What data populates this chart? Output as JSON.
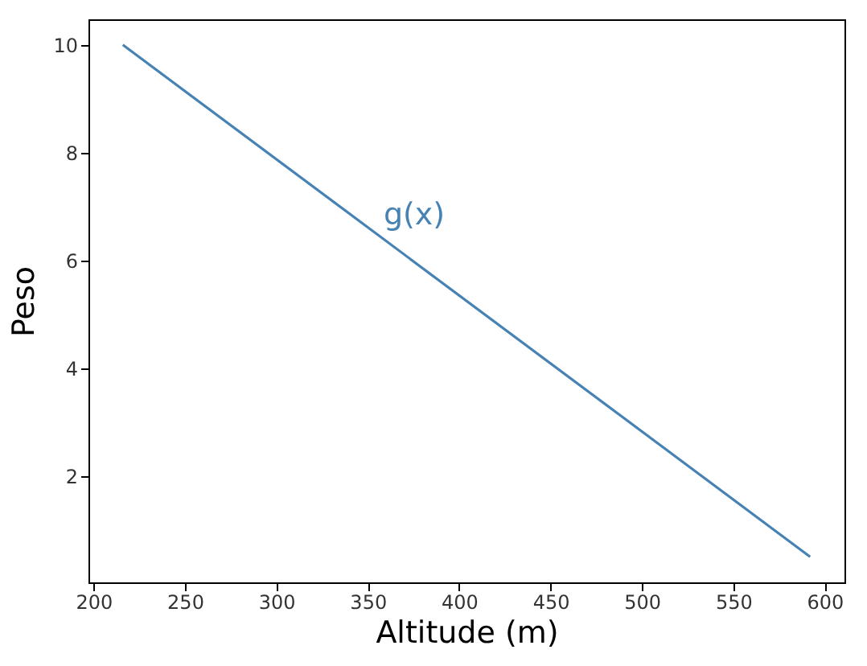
{
  "chart_data": {
    "type": "line",
    "xlabel": "Altitude (m)",
    "ylabel": "Peso",
    "x": [
      216,
      592
    ],
    "series": [
      {
        "name": "g(x)",
        "color": "#4682b4",
        "values": [
          10,
          0.5
        ]
      }
    ],
    "xlim": [
      197.2,
      610.8
    ],
    "ylim": [
      0.025,
      10.475
    ],
    "xticks": [
      200,
      250,
      300,
      350,
      400,
      450,
      500,
      550,
      600
    ],
    "yticks": [
      2,
      4,
      6,
      8,
      10
    ],
    "grid": false,
    "marker": "none",
    "line_style": "solid"
  }
}
